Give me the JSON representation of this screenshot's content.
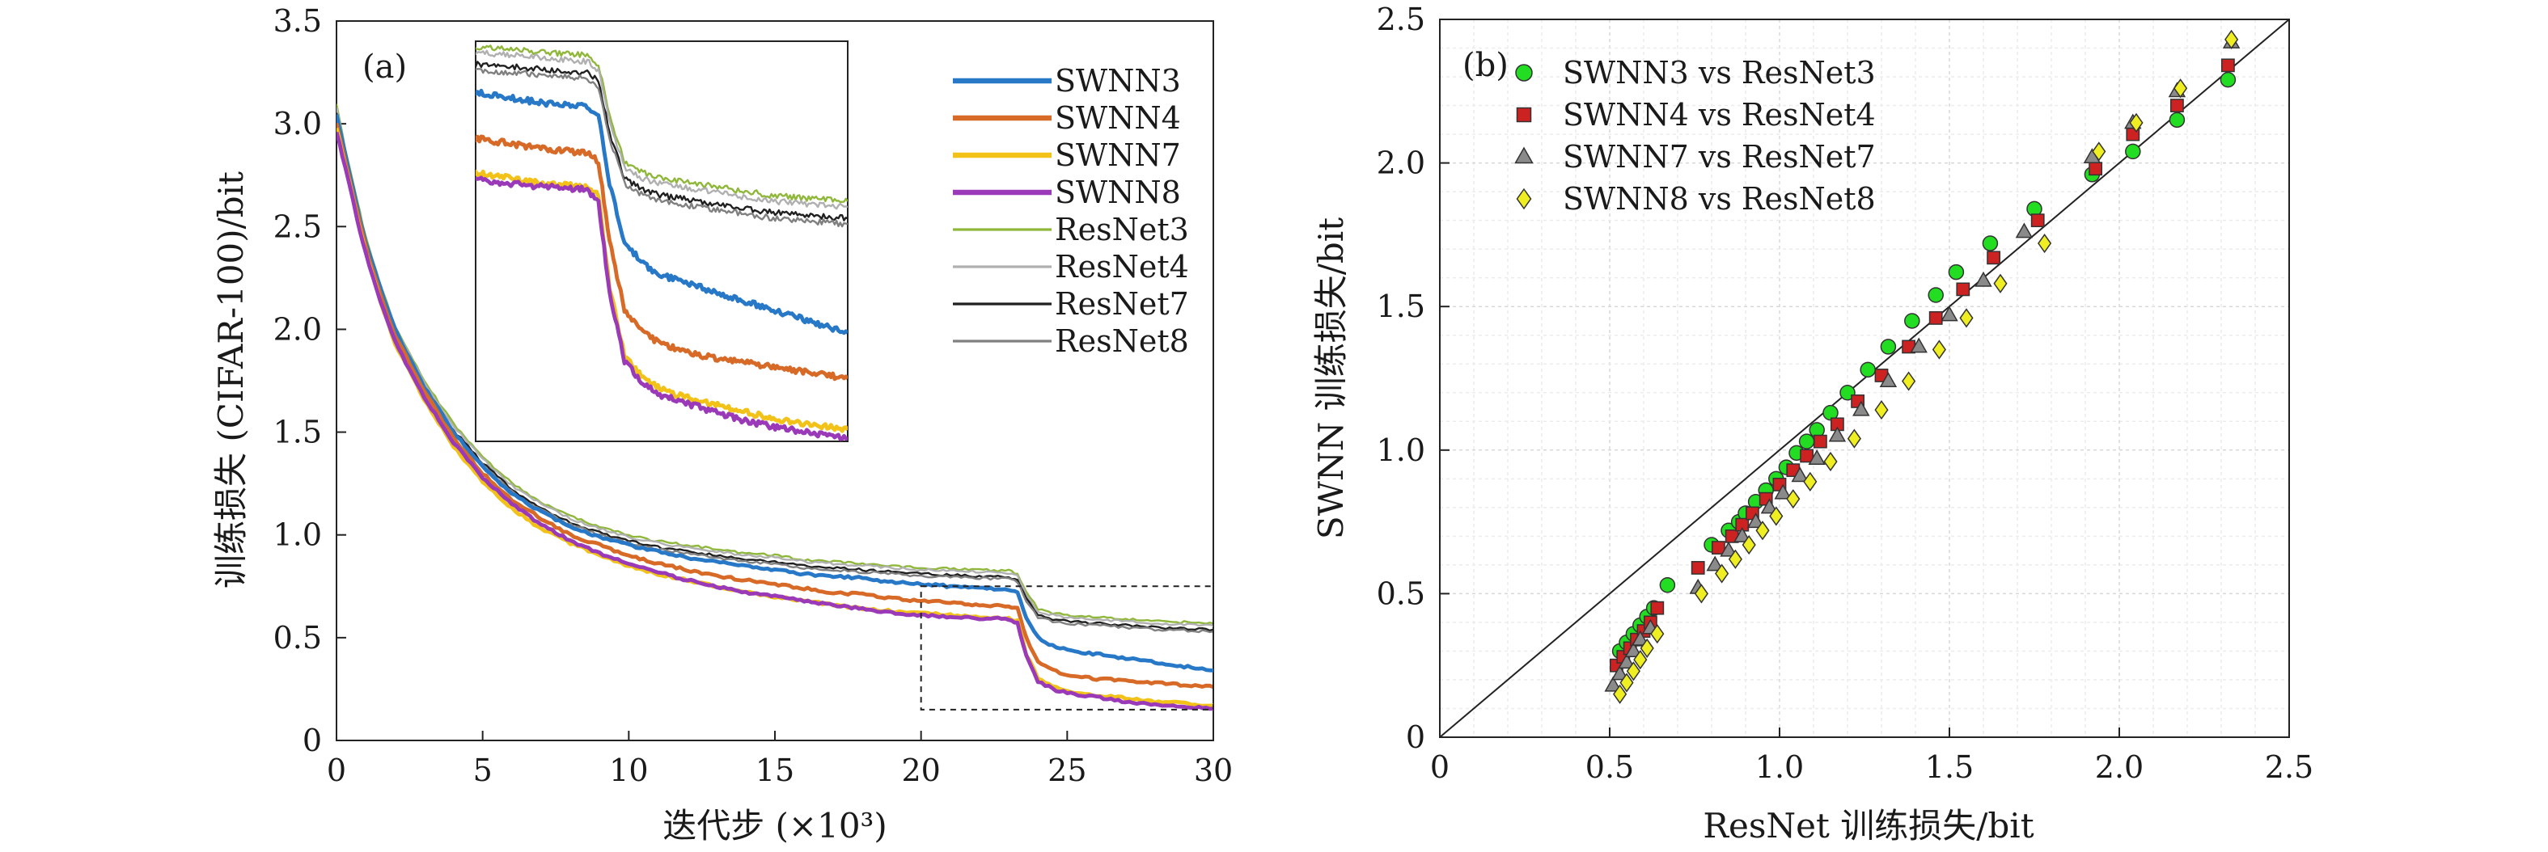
{
  "chart_data": [
    {
      "type": "line",
      "panel_label": "(a)",
      "xlabel": "迭代步 (×10³)",
      "ylabel": "训练损失 (CIFAR-100)/bit",
      "xlim": [
        0,
        30
      ],
      "ylim": [
        0,
        3.5
      ],
      "xticks": [
        "0",
        "5",
        "10",
        "15",
        "20",
        "25",
        "30"
      ],
      "yticks": [
        "0",
        "0.5",
        "1.0",
        "1.5",
        "2.0",
        "2.5",
        "3.0",
        "3.5"
      ],
      "legend_position": "top-right",
      "x": [
        0,
        0.3,
        0.7,
        1,
        1.5,
        2,
        3,
        4,
        5,
        6,
        7,
        8,
        9,
        10,
        11,
        12,
        13,
        14,
        15,
        16,
        17,
        18,
        19,
        20,
        21,
        22,
        23,
        23.3,
        23.6,
        24,
        24.5,
        25,
        26,
        27,
        28,
        29,
        30
      ],
      "series": [
        {
          "name": "SWNN3",
          "color": "#2878c8",
          "width": 3,
          "values": [
            3.05,
            2.85,
            2.6,
            2.42,
            2.2,
            2.0,
            1.72,
            1.5,
            1.33,
            1.2,
            1.11,
            1.04,
            0.99,
            0.95,
            0.92,
            0.89,
            0.87,
            0.85,
            0.83,
            0.81,
            0.8,
            0.79,
            0.77,
            0.76,
            0.75,
            0.74,
            0.735,
            0.72,
            0.6,
            0.5,
            0.46,
            0.44,
            0.42,
            0.4,
            0.38,
            0.36,
            0.34
          ]
        },
        {
          "name": "SWNN4",
          "color": "#d86a28",
          "width": 3,
          "values": [
            3.0,
            2.82,
            2.57,
            2.4,
            2.17,
            1.97,
            1.7,
            1.47,
            1.3,
            1.17,
            1.08,
            1.0,
            0.95,
            0.9,
            0.86,
            0.83,
            0.8,
            0.78,
            0.76,
            0.74,
            0.72,
            0.71,
            0.69,
            0.68,
            0.67,
            0.66,
            0.655,
            0.64,
            0.5,
            0.38,
            0.34,
            0.32,
            0.3,
            0.29,
            0.28,
            0.27,
            0.26
          ]
        },
        {
          "name": "SWNN7",
          "color": "#f2c218",
          "width": 3,
          "values": [
            2.98,
            2.8,
            2.55,
            2.38,
            2.14,
            1.93,
            1.66,
            1.43,
            1.26,
            1.13,
            1.03,
            0.96,
            0.9,
            0.85,
            0.81,
            0.78,
            0.75,
            0.72,
            0.7,
            0.68,
            0.66,
            0.64,
            0.63,
            0.62,
            0.61,
            0.6,
            0.595,
            0.58,
            0.42,
            0.3,
            0.26,
            0.24,
            0.22,
            0.205,
            0.19,
            0.18,
            0.17
          ]
        },
        {
          "name": "SWNN8",
          "color": "#9a3ab8",
          "width": 3,
          "values": [
            2.96,
            2.79,
            2.54,
            2.37,
            2.14,
            1.94,
            1.67,
            1.45,
            1.28,
            1.15,
            1.05,
            0.97,
            0.91,
            0.86,
            0.82,
            0.78,
            0.75,
            0.72,
            0.7,
            0.68,
            0.66,
            0.64,
            0.62,
            0.61,
            0.6,
            0.595,
            0.59,
            0.57,
            0.41,
            0.29,
            0.25,
            0.23,
            0.21,
            0.19,
            0.175,
            0.165,
            0.155
          ]
        },
        {
          "name": "ResNet3",
          "color": "#8fb83a",
          "width": 1.5,
          "values": [
            3.1,
            2.88,
            2.63,
            2.45,
            2.22,
            2.02,
            1.75,
            1.54,
            1.38,
            1.25,
            1.16,
            1.09,
            1.04,
            1.0,
            0.97,
            0.95,
            0.93,
            0.91,
            0.9,
            0.88,
            0.87,
            0.86,
            0.85,
            0.84,
            0.835,
            0.83,
            0.825,
            0.81,
            0.72,
            0.64,
            0.62,
            0.61,
            0.6,
            0.59,
            0.58,
            0.575,
            0.57
          ]
        },
        {
          "name": "ResNet4",
          "color": "#b0b0b0",
          "width": 1.5,
          "values": [
            3.08,
            2.87,
            2.62,
            2.44,
            2.21,
            2.01,
            1.74,
            1.53,
            1.37,
            1.24,
            1.15,
            1.08,
            1.03,
            0.99,
            0.96,
            0.94,
            0.92,
            0.9,
            0.89,
            0.87,
            0.86,
            0.85,
            0.84,
            0.83,
            0.825,
            0.82,
            0.815,
            0.8,
            0.71,
            0.63,
            0.61,
            0.6,
            0.59,
            0.58,
            0.57,
            0.565,
            0.56
          ]
        },
        {
          "name": "ResNet7",
          "color": "#202020",
          "width": 1.5,
          "values": [
            3.05,
            2.85,
            2.6,
            2.42,
            2.19,
            1.99,
            1.72,
            1.51,
            1.35,
            1.22,
            1.13,
            1.06,
            1.01,
            0.97,
            0.94,
            0.92,
            0.9,
            0.88,
            0.87,
            0.85,
            0.84,
            0.83,
            0.82,
            0.81,
            0.805,
            0.8,
            0.795,
            0.78,
            0.69,
            0.61,
            0.59,
            0.58,
            0.57,
            0.56,
            0.55,
            0.545,
            0.54
          ]
        },
        {
          "name": "ResNet8",
          "color": "#808080",
          "width": 1.5,
          "values": [
            3.03,
            2.84,
            2.59,
            2.41,
            2.18,
            1.98,
            1.71,
            1.5,
            1.34,
            1.21,
            1.12,
            1.05,
            1.0,
            0.96,
            0.93,
            0.91,
            0.89,
            0.87,
            0.86,
            0.84,
            0.83,
            0.82,
            0.81,
            0.8,
            0.795,
            0.79,
            0.785,
            0.77,
            0.68,
            0.6,
            0.58,
            0.57,
            0.56,
            0.55,
            0.54,
            0.535,
            0.53
          ]
        }
      ],
      "inset": {
        "source_region": {
          "xlim": [
            20,
            30
          ],
          "ylim": [
            0.15,
            0.75
          ]
        },
        "xlim": [
          20,
          30
        ],
        "ylim": [
          0.15,
          0.85
        ]
      }
    },
    {
      "type": "scatter",
      "panel_label": "(b)",
      "xlabel": "ResNet 训练损失/bit",
      "ylabel": "SWNN 训练损失/bit",
      "xlim": [
        0,
        2.5
      ],
      "ylim": [
        0,
        2.5
      ],
      "xticks": [
        "0",
        "0.5",
        "1.0",
        "1.5",
        "2.0",
        "2.5"
      ],
      "yticks": [
        "0",
        "0.5",
        "1.0",
        "1.5",
        "2.0",
        "2.5"
      ],
      "grid": true,
      "reference_line": "y = x",
      "legend_position": "top-left",
      "series": [
        {
          "name": "SWNN3 vs ResNet3",
          "marker": "circle",
          "color": "#22dd22",
          "points": [
            [
              0.53,
              0.3
            ],
            [
              0.55,
              0.33
            ],
            [
              0.57,
              0.36
            ],
            [
              0.59,
              0.39
            ],
            [
              0.61,
              0.42
            ],
            [
              0.63,
              0.45
            ],
            [
              0.67,
              0.53
            ],
            [
              0.8,
              0.67
            ],
            [
              0.85,
              0.72
            ],
            [
              0.88,
              0.75
            ],
            [
              0.9,
              0.78
            ],
            [
              0.93,
              0.82
            ],
            [
              0.96,
              0.86
            ],
            [
              0.99,
              0.9
            ],
            [
              1.02,
              0.94
            ],
            [
              1.05,
              0.99
            ],
            [
              1.08,
              1.03
            ],
            [
              1.11,
              1.07
            ],
            [
              1.15,
              1.13
            ],
            [
              1.2,
              1.2
            ],
            [
              1.26,
              1.28
            ],
            [
              1.32,
              1.36
            ],
            [
              1.39,
              1.45
            ],
            [
              1.46,
              1.54
            ],
            [
              1.52,
              1.62
            ],
            [
              1.62,
              1.72
            ],
            [
              1.75,
              1.84
            ],
            [
              1.92,
              1.96
            ],
            [
              2.04,
              2.04
            ],
            [
              2.17,
              2.15
            ],
            [
              2.32,
              2.29
            ]
          ]
        },
        {
          "name": "SWNN4 vs ResNet4",
          "marker": "square",
          "color": "#cc2222",
          "points": [
            [
              0.52,
              0.25
            ],
            [
              0.54,
              0.28
            ],
            [
              0.56,
              0.31
            ],
            [
              0.58,
              0.34
            ],
            [
              0.6,
              0.37
            ],
            [
              0.62,
              0.4
            ],
            [
              0.64,
              0.45
            ],
            [
              0.76,
              0.59
            ],
            [
              0.82,
              0.66
            ],
            [
              0.86,
              0.7
            ],
            [
              0.89,
              0.74
            ],
            [
              0.92,
              0.78
            ],
            [
              0.96,
              0.83
            ],
            [
              1.0,
              0.88
            ],
            [
              1.04,
              0.93
            ],
            [
              1.08,
              0.98
            ],
            [
              1.12,
              1.03
            ],
            [
              1.17,
              1.09
            ],
            [
              1.23,
              1.17
            ],
            [
              1.3,
              1.26
            ],
            [
              1.38,
              1.36
            ],
            [
              1.46,
              1.46
            ],
            [
              1.54,
              1.56
            ],
            [
              1.63,
              1.67
            ],
            [
              1.76,
              1.8
            ],
            [
              1.93,
              1.98
            ],
            [
              2.04,
              2.1
            ],
            [
              2.17,
              2.2
            ],
            [
              2.32,
              2.34
            ]
          ]
        },
        {
          "name": "SWNN7 vs ResNet7",
          "marker": "triangle",
          "color": "#8a8a8a",
          "points": [
            [
              0.51,
              0.18
            ],
            [
              0.53,
              0.22
            ],
            [
              0.55,
              0.26
            ],
            [
              0.57,
              0.3
            ],
            [
              0.59,
              0.34
            ],
            [
              0.62,
              0.38
            ],
            [
              0.76,
              0.52
            ],
            [
              0.81,
              0.6
            ],
            [
              0.85,
              0.65
            ],
            [
              0.89,
              0.7
            ],
            [
              0.93,
              0.75
            ],
            [
              0.97,
              0.8
            ],
            [
              1.01,
              0.85
            ],
            [
              1.06,
              0.91
            ],
            [
              1.11,
              0.97
            ],
            [
              1.17,
              1.05
            ],
            [
              1.24,
              1.14
            ],
            [
              1.32,
              1.24
            ],
            [
              1.41,
              1.36
            ],
            [
              1.5,
              1.47
            ],
            [
              1.6,
              1.59
            ],
            [
              1.72,
              1.76
            ],
            [
              1.92,
              2.02
            ],
            [
              2.04,
              2.14
            ],
            [
              2.17,
              2.25
            ],
            [
              2.33,
              2.42
            ]
          ]
        },
        {
          "name": "SWNN8 vs ResNet8",
          "marker": "diamond",
          "color": "#eeee22",
          "points": [
            [
              0.53,
              0.15
            ],
            [
              0.55,
              0.19
            ],
            [
              0.57,
              0.23
            ],
            [
              0.59,
              0.27
            ],
            [
              0.61,
              0.31
            ],
            [
              0.64,
              0.36
            ],
            [
              0.77,
              0.5
            ],
            [
              0.83,
              0.57
            ],
            [
              0.87,
              0.62
            ],
            [
              0.91,
              0.67
            ],
            [
              0.95,
              0.72
            ],
            [
              0.99,
              0.77
            ],
            [
              1.04,
              0.83
            ],
            [
              1.09,
              0.89
            ],
            [
              1.15,
              0.96
            ],
            [
              1.22,
              1.04
            ],
            [
              1.3,
              1.14
            ],
            [
              1.38,
              1.24
            ],
            [
              1.47,
              1.35
            ],
            [
              1.55,
              1.46
            ],
            [
              1.65,
              1.58
            ],
            [
              1.78,
              1.72
            ],
            [
              1.94,
              2.04
            ],
            [
              2.05,
              2.14
            ],
            [
              2.18,
              2.26
            ],
            [
              2.33,
              2.43
            ]
          ]
        }
      ]
    }
  ]
}
